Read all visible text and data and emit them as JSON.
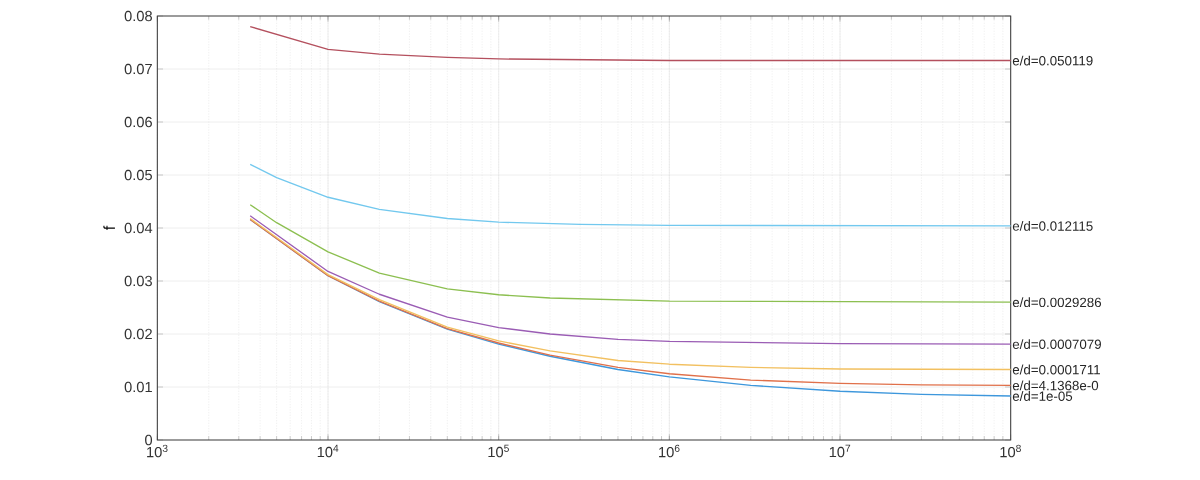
{
  "chart_data": {
    "type": "line",
    "ylabel": "f",
    "log": "x",
    "grid": true,
    "legend": false,
    "marker": "none",
    "line_style": "solid",
    "xlim": [
      1000,
      100000000
    ],
    "ylim": [
      0,
      0.08
    ],
    "xticks": [
      {
        "value": 1000,
        "label": "10$^{3}$"
      },
      {
        "value": 10000,
        "label": "10$^{4}$"
      },
      {
        "value": 100000,
        "label": "10$^{5}$"
      },
      {
        "value": 1000000,
        "label": "10$^{6}$"
      },
      {
        "value": 10000000,
        "label": "10$^{7}$"
      },
      {
        "value": 100000000,
        "label": "10$^{8}$"
      }
    ],
    "yticks": [
      0,
      0.01,
      0.02,
      0.03,
      0.04,
      0.05,
      0.06,
      0.07,
      0.08
    ],
    "series": [
      {
        "name": "e/d=1e-05",
        "color": "#3d97dc",
        "x": [
          3500,
          10000,
          20000,
          50000,
          100000,
          200000,
          500000,
          1000000,
          3000000,
          10000000,
          30000000,
          100000000
        ],
        "values": [
          0.0416,
          0.031,
          0.0261,
          0.0209,
          0.0181,
          0.0158,
          0.0133,
          0.0119,
          0.0103,
          0.0092,
          0.0086,
          0.0083
        ]
      },
      {
        "name": "e/d=4.1368e-0",
        "color": "#e0704a",
        "x": [
          3500,
          10000,
          20000,
          50000,
          100000,
          200000,
          500000,
          1000000,
          3000000,
          10000000,
          30000000,
          100000000
        ],
        "values": [
          0.0416,
          0.031,
          0.0262,
          0.021,
          0.0183,
          0.016,
          0.0137,
          0.0125,
          0.0113,
          0.0107,
          0.0104,
          0.0103
        ]
      },
      {
        "name": "e/d=0.0001711",
        "color": "#f2c060",
        "x": [
          3500,
          10000,
          20000,
          50000,
          100000,
          200000,
          500000,
          1000000,
          3000000,
          10000000,
          100000000
        ],
        "values": [
          0.0418,
          0.0312,
          0.0265,
          0.0213,
          0.0187,
          0.0168,
          0.015,
          0.0143,
          0.0137,
          0.0134,
          0.0133
        ]
      },
      {
        "name": "e/d=0.0007079",
        "color": "#9a5cb4",
        "x": [
          3500,
          10000,
          20000,
          50000,
          100000,
          200000,
          500000,
          1000000,
          10000000,
          100000000
        ],
        "values": [
          0.0423,
          0.0318,
          0.0275,
          0.0232,
          0.0212,
          0.02,
          0.019,
          0.0186,
          0.0182,
          0.0181
        ]
      },
      {
        "name": "e/d=0.0029286",
        "color": "#8cbf50",
        "x": [
          3500,
          5000,
          10000,
          20000,
          50000,
          100000,
          200000,
          1000000,
          100000000
        ],
        "values": [
          0.0444,
          0.041,
          0.0355,
          0.0315,
          0.0285,
          0.0274,
          0.0268,
          0.0262,
          0.026
        ]
      },
      {
        "name": "e/d=0.012115",
        "color": "#72c8ee",
        "x": [
          3500,
          5000,
          10000,
          20000,
          50000,
          100000,
          300000,
          1000000,
          100000000
        ],
        "values": [
          0.052,
          0.0495,
          0.0458,
          0.0435,
          0.0418,
          0.0411,
          0.0407,
          0.0405,
          0.0404
        ]
      },
      {
        "name": "e/d=0.050119",
        "color": "#b4505e",
        "x": [
          3500,
          10000,
          20000,
          50000,
          100000,
          1000000,
          100000000
        ],
        "values": [
          0.078,
          0.0737,
          0.0728,
          0.0722,
          0.0719,
          0.0716,
          0.0716
        ]
      }
    ]
  }
}
